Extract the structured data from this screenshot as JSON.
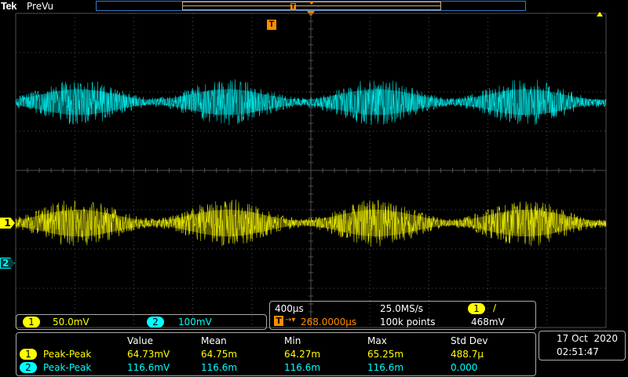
{
  "header": {
    "brand": "Tek",
    "mode": "PreVu"
  },
  "trigger": {
    "marker": "T"
  },
  "channels": [
    {
      "id": "1",
      "color": "#ffff00",
      "scale": "50.0mV"
    },
    {
      "id": "2",
      "color": "#00ffff",
      "scale": "100mV"
    }
  ],
  "timebase": {
    "horizontal_scale": "400µs",
    "sample_rate": "25.0MS/s",
    "trigger_channel": "1",
    "trigger_slope": "/",
    "trigger_position_marker": "T",
    "trigger_position": "268.0000µs",
    "record_length": "100k points",
    "trigger_level": "468mV"
  },
  "measurements": {
    "columns": [
      "Value",
      "Mean",
      "Min",
      "Max",
      "Std Dev"
    ],
    "rows": [
      {
        "channel": "1",
        "name": "Peak-Peak",
        "value": "64.73mV",
        "mean": "64.75m",
        "min": "64.27m",
        "max": "65.25m",
        "std_dev": "488.7µ"
      },
      {
        "channel": "2",
        "name": "Peak-Peak",
        "value": "116.6mV",
        "mean": "116.6m",
        "min": "116.6m",
        "max": "116.6m",
        "std_dev": "0.000"
      }
    ]
  },
  "datetime": {
    "date": "17 Oct  2020",
    "time": "02:51:47"
  },
  "colors": {
    "ch1": "#ffff00",
    "ch2": "#00ffff",
    "trigger": "#ff8c00",
    "grid": "#505050",
    "record_frame": "#3a78c8"
  }
}
